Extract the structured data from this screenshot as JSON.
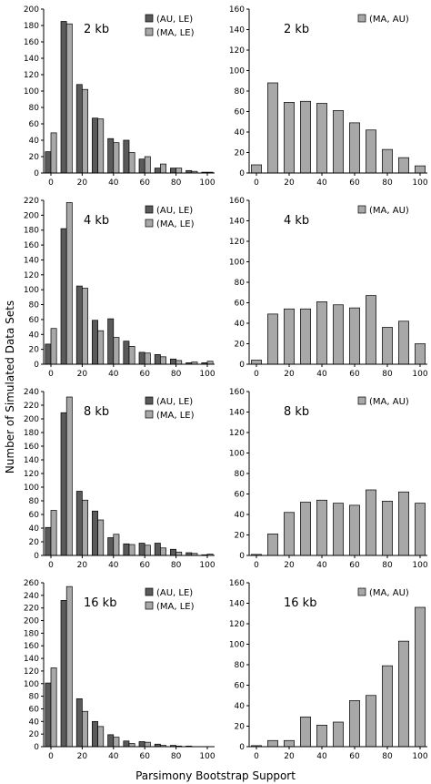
{
  "figure": {
    "ylabel": "Number of Simulated Data Sets",
    "xlabel": "Parsimony Bootstrap Support"
  },
  "colors": {
    "dark_series": "#5a5a5a",
    "light_series": "#a8a8a8",
    "bar_stroke": "#000000"
  },
  "chart_data": [
    {
      "type": "bar",
      "title": "2 kb",
      "categories": [
        "0",
        "10",
        "20",
        "30",
        "40",
        "50",
        "60",
        "70",
        "80",
        "90",
        "100"
      ],
      "ylim": [
        0,
        200
      ],
      "yticks": [
        0,
        20,
        40,
        60,
        80,
        100,
        120,
        140,
        160,
        180,
        200
      ],
      "xticks": [
        0,
        20,
        40,
        60,
        80,
        100
      ],
      "legend": "top-right",
      "series": [
        {
          "name": "(AU, LE)",
          "values": [
            26,
            185,
            108,
            67,
            42,
            40,
            17,
            6,
            6,
            3,
            1
          ]
        },
        {
          "name": "(MA, LE)",
          "values": [
            49,
            182,
            102,
            66,
            37,
            25,
            20,
            11,
            6,
            2,
            1
          ]
        }
      ]
    },
    {
      "type": "bar",
      "title": "2 kb",
      "categories": [
        "0",
        "10",
        "20",
        "30",
        "40",
        "50",
        "60",
        "70",
        "80",
        "90",
        "100"
      ],
      "ylim": [
        0,
        160
      ],
      "yticks": [
        0,
        20,
        40,
        60,
        80,
        100,
        120,
        140,
        160
      ],
      "xticks": [
        0,
        20,
        40,
        60,
        80,
        100
      ],
      "legend": "top-right",
      "series": [
        {
          "name": "(MA, AU)",
          "values": [
            8,
            88,
            69,
            70,
            68,
            61,
            49,
            42,
            23,
            15,
            7
          ]
        }
      ]
    },
    {
      "type": "bar",
      "title": "4 kb",
      "categories": [
        "0",
        "10",
        "20",
        "30",
        "40",
        "50",
        "60",
        "70",
        "80",
        "90",
        "100"
      ],
      "ylim": [
        0,
        220
      ],
      "yticks": [
        0,
        20,
        40,
        60,
        80,
        100,
        120,
        140,
        160,
        180,
        200,
        220
      ],
      "xticks": [
        0,
        20,
        40,
        60,
        80,
        100
      ],
      "legend": "top-right",
      "series": [
        {
          "name": "(AU, LE)",
          "values": [
            27,
            182,
            105,
            59,
            61,
            31,
            16,
            13,
            7,
            2,
            2
          ]
        },
        {
          "name": "(MA, LE)",
          "values": [
            48,
            217,
            102,
            45,
            36,
            24,
            15,
            10,
            5,
            3,
            4
          ]
        }
      ]
    },
    {
      "type": "bar",
      "title": "4 kb",
      "categories": [
        "0",
        "10",
        "20",
        "30",
        "40",
        "50",
        "60",
        "70",
        "80",
        "90",
        "100"
      ],
      "ylim": [
        0,
        160
      ],
      "yticks": [
        0,
        20,
        40,
        60,
        80,
        100,
        120,
        140,
        160
      ],
      "xticks": [
        0,
        20,
        40,
        60,
        80,
        100
      ],
      "legend": "top-right",
      "series": [
        {
          "name": "(MA, AU)",
          "values": [
            4,
            49,
            54,
            54,
            61,
            58,
            55,
            67,
            36,
            42,
            20
          ]
        }
      ]
    },
    {
      "type": "bar",
      "title": "8 kb",
      "categories": [
        "0",
        "10",
        "20",
        "30",
        "40",
        "50",
        "60",
        "70",
        "80",
        "90",
        "100"
      ],
      "ylim": [
        0,
        240
      ],
      "yticks": [
        0,
        20,
        40,
        60,
        80,
        100,
        120,
        140,
        160,
        180,
        200,
        220,
        240
      ],
      "xticks": [
        0,
        20,
        40,
        60,
        80,
        100
      ],
      "legend": "top-right",
      "series": [
        {
          "name": "(AU, LE)",
          "values": [
            41,
            209,
            94,
            65,
            26,
            17,
            18,
            18,
            9,
            4,
            1
          ]
        },
        {
          "name": "(MA, LE)",
          "values": [
            66,
            232,
            81,
            52,
            31,
            16,
            15,
            11,
            5,
            3,
            2
          ]
        }
      ]
    },
    {
      "type": "bar",
      "title": "8 kb",
      "categories": [
        "0",
        "10",
        "20",
        "30",
        "40",
        "50",
        "60",
        "70",
        "80",
        "90",
        "100"
      ],
      "ylim": [
        0,
        160
      ],
      "yticks": [
        0,
        20,
        40,
        60,
        80,
        100,
        120,
        140,
        160
      ],
      "xticks": [
        0,
        20,
        40,
        60,
        80,
        100
      ],
      "legend": "top-right",
      "series": [
        {
          "name": "(MA, AU)",
          "values": [
            1,
            21,
            42,
            52,
            54,
            51,
            49,
            64,
            53,
            62,
            51
          ]
        }
      ]
    },
    {
      "type": "bar",
      "title": "16 kb",
      "categories": [
        "0",
        "10",
        "20",
        "30",
        "40",
        "50",
        "60",
        "70",
        "80",
        "90",
        "100"
      ],
      "ylim": [
        0,
        260
      ],
      "yticks": [
        0,
        20,
        40,
        60,
        80,
        100,
        120,
        140,
        160,
        180,
        200,
        220,
        240,
        260
      ],
      "xticks": [
        0,
        20,
        40,
        60,
        80,
        100
      ],
      "legend": "top-right",
      "series": [
        {
          "name": "(AU, LE)",
          "values": [
            101,
            232,
            76,
            40,
            19,
            9,
            8,
            4,
            2,
            1,
            0
          ]
        },
        {
          "name": "(MA, LE)",
          "values": [
            125,
            254,
            56,
            32,
            15,
            5,
            7,
            2,
            1,
            0,
            0
          ]
        }
      ]
    },
    {
      "type": "bar",
      "title": "16 kb",
      "categories": [
        "0",
        "10",
        "20",
        "30",
        "40",
        "50",
        "60",
        "70",
        "80",
        "90",
        "100"
      ],
      "ylim": [
        0,
        160
      ],
      "yticks": [
        0,
        20,
        40,
        60,
        80,
        100,
        120,
        140,
        160
      ],
      "xticks": [
        0,
        20,
        40,
        60,
        80,
        100
      ],
      "legend": "top-right",
      "series": [
        {
          "name": "(MA, AU)",
          "values": [
            1,
            6,
            6,
            29,
            21,
            24,
            45,
            50,
            79,
            103,
            136
          ]
        }
      ]
    }
  ]
}
